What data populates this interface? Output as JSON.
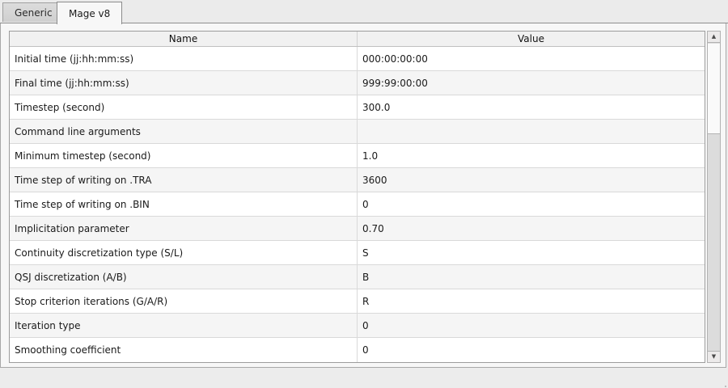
{
  "tabs": [
    {
      "label": "Generic",
      "active": false
    },
    {
      "label": "Mage v8",
      "active": true
    }
  ],
  "table": {
    "columns": [
      "Name",
      "Value"
    ],
    "rows": [
      {
        "name": "Initial time (jj:hh:mm:ss)",
        "value": "000:00:00:00"
      },
      {
        "name": "Final time (jj:hh:mm:ss)",
        "value": "999:99:00:00"
      },
      {
        "name": "Timestep (second)",
        "value": "300.0"
      },
      {
        "name": "Command line arguments",
        "value": ""
      },
      {
        "name": "Minimum timestep (second)",
        "value": "1.0"
      },
      {
        "name": "Time step of writing on .TRA",
        "value": "3600"
      },
      {
        "name": "Time step of writing on .BIN",
        "value": "0"
      },
      {
        "name": "Implicitation parameter",
        "value": "0.70"
      },
      {
        "name": "Continuity discretization type (S/L)",
        "value": "S"
      },
      {
        "name": "QSJ discretization (A/B)",
        "value": "B"
      },
      {
        "name": "Stop criterion iterations (G/A/R)",
        "value": "R"
      },
      {
        "name": "Iteration type",
        "value": "0"
      },
      {
        "name": "Smoothing coefficient",
        "value": "0"
      }
    ]
  },
  "scrollbar": {
    "up_icon": "▲",
    "down_icon": "▼"
  },
  "colors": {
    "panel_bg": "#f7f7f7",
    "row_alt_bg": "#f5f5f5",
    "window_bg": "#ececec",
    "border": "#9c9c9c"
  }
}
